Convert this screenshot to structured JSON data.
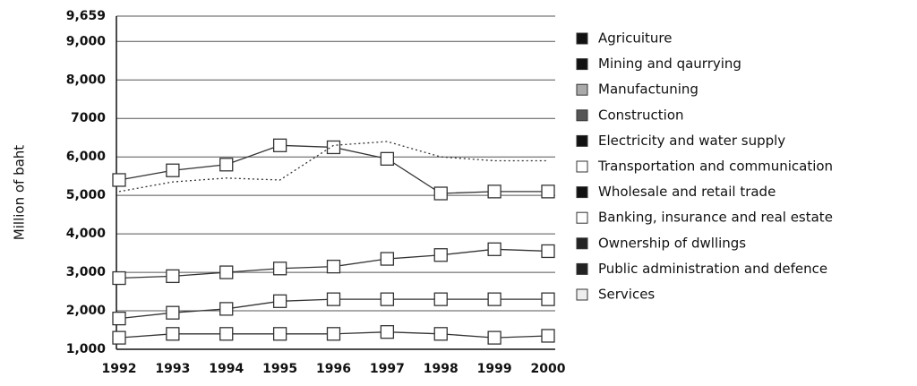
{
  "chart_data": {
    "type": "line",
    "ylabel": "Million of baht",
    "categories": [
      "1992",
      "1993",
      "1994",
      "1995",
      "1996",
      "1997",
      "1998",
      "1999",
      "2000"
    ],
    "ylim": [
      1000,
      9659
    ],
    "yticks": [
      {
        "value": 1000,
        "label": "1,000"
      },
      {
        "value": 2000,
        "label": "2,000"
      },
      {
        "value": 3000,
        "label": "3,000"
      },
      {
        "value": 4000,
        "label": "4,000"
      },
      {
        "value": 5000,
        "label": "5,000"
      },
      {
        "value": 6000,
        "label": "6,000"
      },
      7000,
      {
        "value": 8000,
        "label": "8,000"
      },
      {
        "value": 9000,
        "label": "9,000"
      },
      {
        "value": 9659,
        "label": "9,659"
      }
    ],
    "grid": true,
    "legend": "right",
    "series": [
      {
        "name": "Agricuiture",
        "color": "#111111",
        "values": [
          1300,
          1400,
          1400,
          1400,
          1400,
          1450,
          1400,
          1300,
          1350
        ]
      },
      {
        "name": "Mining and qaurrying",
        "color": "#111111",
        "values": [
          null,
          null,
          null,
          null,
          null,
          null,
          null,
          null,
          null
        ]
      },
      {
        "name": "Manufactuning",
        "color": "#aaaaaa",
        "values": [
          5400,
          5650,
          5800,
          6300,
          6250,
          5950,
          5050,
          5100,
          5100
        ]
      },
      {
        "name": "Construction",
        "color": "#555555",
        "values": [
          null,
          null,
          null,
          null,
          null,
          null,
          null,
          null,
          null
        ]
      },
      {
        "name": "Electricity and water supply",
        "color": "#111111",
        "values": [
          null,
          null,
          null,
          null,
          null,
          null,
          null,
          null,
          null
        ]
      },
      {
        "name": "Transportation and communication",
        "color": "#ffffff",
        "dash": true,
        "values": [
          5100,
          5350,
          5450,
          5400,
          6300,
          6400,
          6000,
          5900,
          5900
        ]
      },
      {
        "name": "Wholesale and retail trade",
        "color": "#111111",
        "values": [
          2850,
          2900,
          3000,
          3100,
          3150,
          3350,
          3450,
          3600,
          3550
        ]
      },
      {
        "name": "Banking, insurance and real estate",
        "color": "#ffffff",
        "values": [
          null,
          null,
          null,
          null,
          null,
          null,
          null,
          null,
          null
        ]
      },
      {
        "name": "Ownership of dwllings",
        "color": "#222222",
        "values": [
          null,
          null,
          null,
          null,
          null,
          null,
          null,
          null,
          null
        ]
      },
      {
        "name": "Public administration and defence",
        "color": "#222222",
        "values": [
          null,
          null,
          null,
          null,
          null,
          null,
          null,
          null,
          null
        ]
      },
      {
        "name": "Services",
        "color": "#eeeeee",
        "values": [
          1800,
          1950,
          2050,
          2250,
          2300,
          2300,
          2300,
          2300,
          2300
        ]
      }
    ]
  }
}
